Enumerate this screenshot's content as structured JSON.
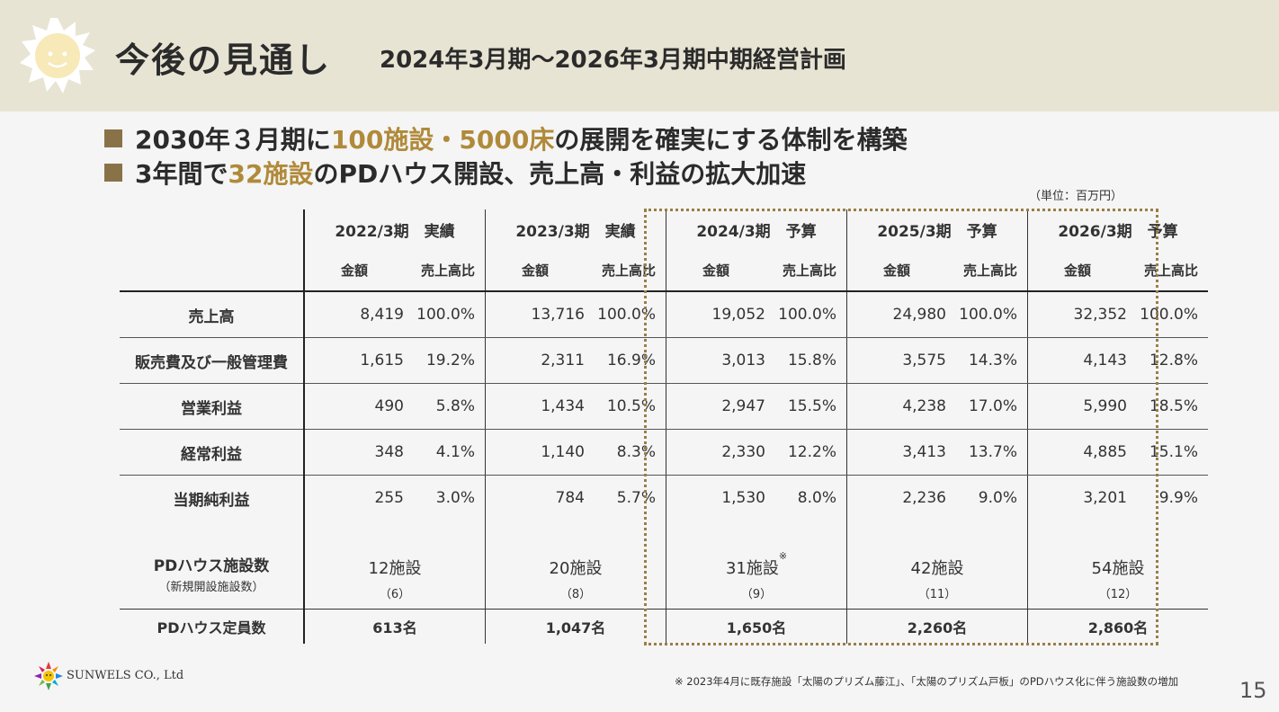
{
  "header": {
    "title": "今後の見通し",
    "subtitle": "2024年3月期～2026年3月期中期経営計画"
  },
  "bullets": [
    {
      "pre": "2030年３月期に",
      "hl": "100施設・5000床",
      "post": "の展開を確実にする体制を構築"
    },
    {
      "pre": "3年間で",
      "hl": "32施設",
      "post": "のPDハウス開設、売上高・利益の拡大加速"
    }
  ],
  "unit": "（単位：百万円）",
  "table": {
    "periods": [
      "2022/3期　実績",
      "2023/3期　実績",
      "2024/3期　予算",
      "2025/3期　予算",
      "2026/3期　予算"
    ],
    "sub_amount": "金額",
    "sub_ratio": "売上高比",
    "rows": [
      {
        "label": "売上高",
        "cells": [
          [
            "8,419",
            "100.0%"
          ],
          [
            "13,716",
            "100.0%"
          ],
          [
            "19,052",
            "100.0%"
          ],
          [
            "24,980",
            "100.0%"
          ],
          [
            "32,352",
            "100.0%"
          ]
        ]
      },
      {
        "label": "販売費及び一般管理費",
        "cells": [
          [
            "1,615",
            "19.2%"
          ],
          [
            "2,311",
            "16.9%"
          ],
          [
            "3,013",
            "15.8%"
          ],
          [
            "3,575",
            "14.3%"
          ],
          [
            "4,143",
            "12.8%"
          ]
        ]
      },
      {
        "label": "営業利益",
        "cells": [
          [
            "490",
            "5.8%"
          ],
          [
            "1,434",
            "10.5%"
          ],
          [
            "2,947",
            "15.5%"
          ],
          [
            "4,238",
            "17.0%"
          ],
          [
            "5,990",
            "18.5%"
          ]
        ]
      },
      {
        "label": "経常利益",
        "cells": [
          [
            "348",
            "4.1%"
          ],
          [
            "1,140",
            "8.3%"
          ],
          [
            "2,330",
            "12.2%"
          ],
          [
            "3,413",
            "13.7%"
          ],
          [
            "4,885",
            "15.1%"
          ]
        ]
      },
      {
        "label": "当期純利益",
        "cells": [
          [
            "255",
            "3.0%"
          ],
          [
            "784",
            "5.7%"
          ],
          [
            "1,530",
            "8.0%"
          ],
          [
            "2,236",
            "9.0%"
          ],
          [
            "3,201",
            "9.9%"
          ]
        ]
      }
    ],
    "pd": {
      "label": "PDハウス施設数",
      "sublabel": "（新規開設施設数）",
      "counts": [
        "12施設",
        "20施設",
        "31施設",
        "42施設",
        "54施設"
      ],
      "new": [
        "（6）",
        "（8）",
        "（9）",
        "（11）",
        "（12）"
      ],
      "note_mark": "※"
    },
    "capacity": {
      "label": "PDハウス定員数",
      "values": [
        "613名",
        "1,047名",
        "1,650名",
        "2,260名",
        "2,860名"
      ]
    }
  },
  "footer": {
    "company": "SUNWELS CO., Ltd",
    "footnote": "※ 2023年4月に既存施設「太陽のプリズム藤江」、「太陽のプリズム戸板」のPDハウス化に伴う施設数の増加",
    "page": "15"
  }
}
